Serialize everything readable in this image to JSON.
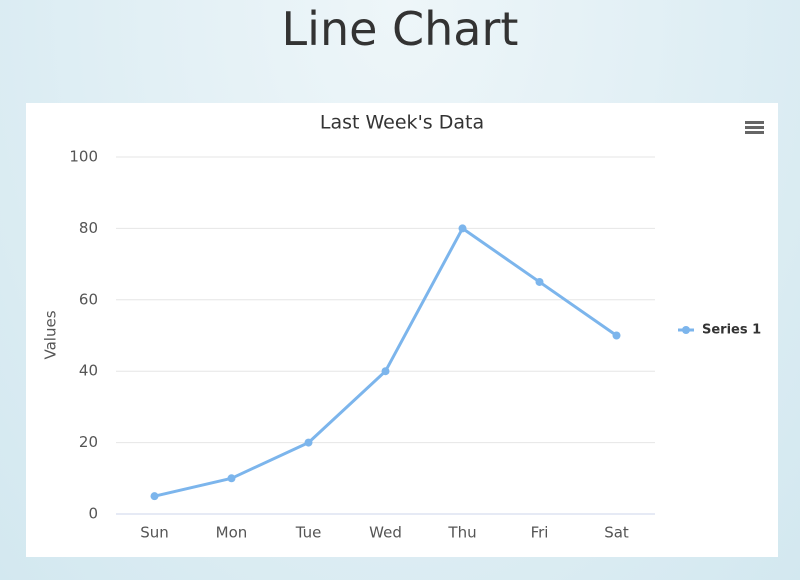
{
  "page_title": "Line Chart",
  "chart_data": {
    "type": "line",
    "title": "Last Week's Data",
    "y_label": "Values",
    "categories": [
      "Sun",
      "Mon",
      "Tue",
      "Wed",
      "Thu",
      "Fri",
      "Sat"
    ],
    "series": [
      {
        "name": "Series 1",
        "color": "#7cb5ec",
        "values": [
          5,
          10,
          20,
          40,
          80,
          65,
          50
        ]
      }
    ],
    "ylim": [
      0,
      100
    ],
    "yticks": [
      0,
      20,
      40,
      60,
      80,
      100
    ],
    "grid": true,
    "legend": "right"
  }
}
